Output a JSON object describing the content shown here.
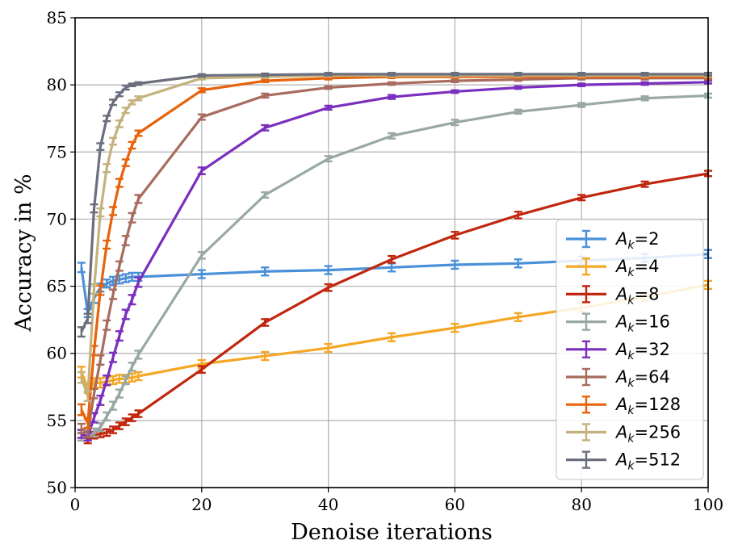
{
  "chart_data": {
    "type": "line",
    "title": "",
    "xlabel": "Denoise iterations",
    "ylabel": "Accuracy in %",
    "xlim": [
      0,
      100
    ],
    "ylim": [
      50,
      85
    ],
    "xticks": [
      "0",
      "20",
      "40",
      "60",
      "80",
      "100"
    ],
    "yticks": [
      "50",
      "55",
      "60",
      "65",
      "70",
      "75",
      "80",
      "85"
    ],
    "grid": true,
    "legend_position": "lower-right",
    "x": [
      1,
      2,
      3,
      4,
      5,
      6,
      7,
      8,
      9,
      10,
      20,
      30,
      40,
      50,
      60,
      70,
      80,
      90,
      100
    ],
    "series": [
      {
        "name": "A_k=2",
        "base": "A",
        "sub": "k",
        "suffix": "=2",
        "color": "#4a90d9",
        "values": [
          66.4,
          63.0,
          64.1,
          64.9,
          65.2,
          65.4,
          65.5,
          65.6,
          65.7,
          65.7,
          65.9,
          66.1,
          66.2,
          66.4,
          66.6,
          66.7,
          66.9,
          67.1,
          67.4
        ],
        "errors": [
          0.35,
          0.3,
          0.35,
          0.3,
          0.3,
          0.3,
          0.3,
          0.3,
          0.3,
          0.3,
          0.3,
          0.3,
          0.3,
          0.3,
          0.3,
          0.3,
          0.3,
          0.3,
          0.3
        ]
      },
      {
        "name": "A_k=4",
        "base": "A",
        "sub": "k",
        "suffix": "=4",
        "color": "#f5a623",
        "values": [
          58.6,
          57.4,
          57.8,
          57.8,
          57.9,
          58.0,
          58.1,
          58.1,
          58.2,
          58.3,
          59.2,
          59.8,
          60.4,
          61.2,
          61.9,
          62.7,
          63.4,
          64.2,
          65.1
        ],
        "errors": [
          0.4,
          0.35,
          0.35,
          0.35,
          0.3,
          0.3,
          0.3,
          0.3,
          0.3,
          0.3,
          0.3,
          0.3,
          0.3,
          0.3,
          0.3,
          0.3,
          0.3,
          0.3,
          0.3
        ]
      },
      {
        "name": "A_k=8",
        "base": "A",
        "sub": "k",
        "suffix": "=8",
        "color": "#c0270e",
        "values": [
          54.0,
          53.6,
          53.9,
          54.0,
          54.1,
          54.3,
          54.6,
          54.9,
          55.2,
          55.5,
          58.8,
          62.3,
          64.9,
          67.0,
          68.8,
          70.3,
          71.6,
          72.6,
          73.4
        ],
        "errors": [
          0.3,
          0.3,
          0.25,
          0.25,
          0.25,
          0.25,
          0.25,
          0.25,
          0.25,
          0.25,
          0.25,
          0.25,
          0.25,
          0.25,
          0.25,
          0.25,
          0.2,
          0.2,
          0.2
        ]
      },
      {
        "name": "A_k=16",
        "base": "A",
        "sub": "k",
        "suffix": "=16",
        "color": "#98a8a4",
        "values": [
          53.8,
          53.8,
          54.1,
          54.5,
          55.3,
          56.1,
          57.0,
          58.0,
          59.0,
          59.9,
          67.3,
          71.8,
          74.5,
          76.2,
          77.2,
          78.0,
          78.5,
          79.0,
          79.2
        ],
        "errors": [
          0.3,
          0.3,
          0.3,
          0.3,
          0.3,
          0.3,
          0.3,
          0.3,
          0.3,
          0.3,
          0.25,
          0.2,
          0.2,
          0.2,
          0.2,
          0.15,
          0.15,
          0.15,
          0.15
        ]
      },
      {
        "name": "A_k=32",
        "base": "A",
        "sub": "k",
        "suffix": "=32",
        "color": "#7b2fbe",
        "values": [
          54.0,
          53.8,
          55.2,
          56.5,
          58.0,
          59.7,
          61.3,
          62.9,
          64.0,
          65.3,
          73.6,
          76.8,
          78.3,
          79.1,
          79.5,
          79.8,
          80.0,
          80.1,
          80.2
        ],
        "errors": [
          0.3,
          0.3,
          0.35,
          0.35,
          0.35,
          0.35,
          0.35,
          0.35,
          0.35,
          0.35,
          0.25,
          0.2,
          0.15,
          0.15,
          0.1,
          0.1,
          0.1,
          0.1,
          0.1
        ]
      },
      {
        "name": "A_k=64",
        "base": "A",
        "sub": "k",
        "suffix": "=64",
        "color": "#a86b5d",
        "values": [
          54.4,
          54.1,
          57.0,
          59.5,
          62.1,
          64.4,
          66.5,
          68.4,
          70.1,
          71.5,
          77.6,
          79.2,
          79.8,
          80.1,
          80.3,
          80.4,
          80.5,
          80.5,
          80.5
        ],
        "errors": [
          0.35,
          0.35,
          0.35,
          0.35,
          0.35,
          0.35,
          0.35,
          0.35,
          0.35,
          0.3,
          0.2,
          0.15,
          0.1,
          0.1,
          0.1,
          0.1,
          0.1,
          0.1,
          0.1
        ]
      },
      {
        "name": "A_k=128",
        "base": "A",
        "sub": "k",
        "suffix": "=128",
        "color": "#e8620a",
        "values": [
          55.8,
          54.8,
          60.2,
          64.7,
          68.1,
          70.6,
          72.7,
          74.2,
          75.5,
          76.4,
          79.6,
          80.3,
          80.5,
          80.6,
          80.6,
          80.6,
          80.6,
          80.6,
          80.6
        ],
        "errors": [
          0.4,
          0.35,
          0.35,
          0.35,
          0.3,
          0.3,
          0.3,
          0.25,
          0.25,
          0.2,
          0.15,
          0.1,
          0.1,
          0.1,
          0.1,
          0.1,
          0.1,
          0.1,
          0.1
        ]
      },
      {
        "name": "A_k=256",
        "base": "A",
        "sub": "k",
        "suffix": "=256",
        "color": "#c4b27e",
        "values": [
          58.2,
          56.8,
          64.8,
          70.5,
          73.8,
          75.8,
          77.1,
          78.1,
          78.7,
          79.0,
          80.5,
          80.6,
          80.7,
          80.7,
          80.7,
          80.7,
          80.7,
          80.7,
          80.7
        ],
        "errors": [
          0.4,
          0.35,
          0.35,
          0.3,
          0.3,
          0.25,
          0.25,
          0.2,
          0.15,
          0.15,
          0.1,
          0.1,
          0.1,
          0.1,
          0.1,
          0.1,
          0.1,
          0.1,
          0.1
        ]
      },
      {
        "name": "A_k=512",
        "base": "A",
        "sub": "k",
        "suffix": "=512",
        "color": "#6b6f7d",
        "values": [
          61.6,
          62.6,
          70.8,
          75.4,
          77.5,
          78.7,
          79.3,
          79.8,
          80.0,
          80.1,
          80.7,
          80.75,
          80.8,
          80.8,
          80.8,
          80.8,
          80.8,
          80.8,
          80.8
        ],
        "errors": [
          0.35,
          0.35,
          0.3,
          0.25,
          0.2,
          0.2,
          0.15,
          0.15,
          0.1,
          0.1,
          0.1,
          0.1,
          0.1,
          0.1,
          0.1,
          0.1,
          0.1,
          0.1,
          0.1
        ]
      }
    ]
  }
}
